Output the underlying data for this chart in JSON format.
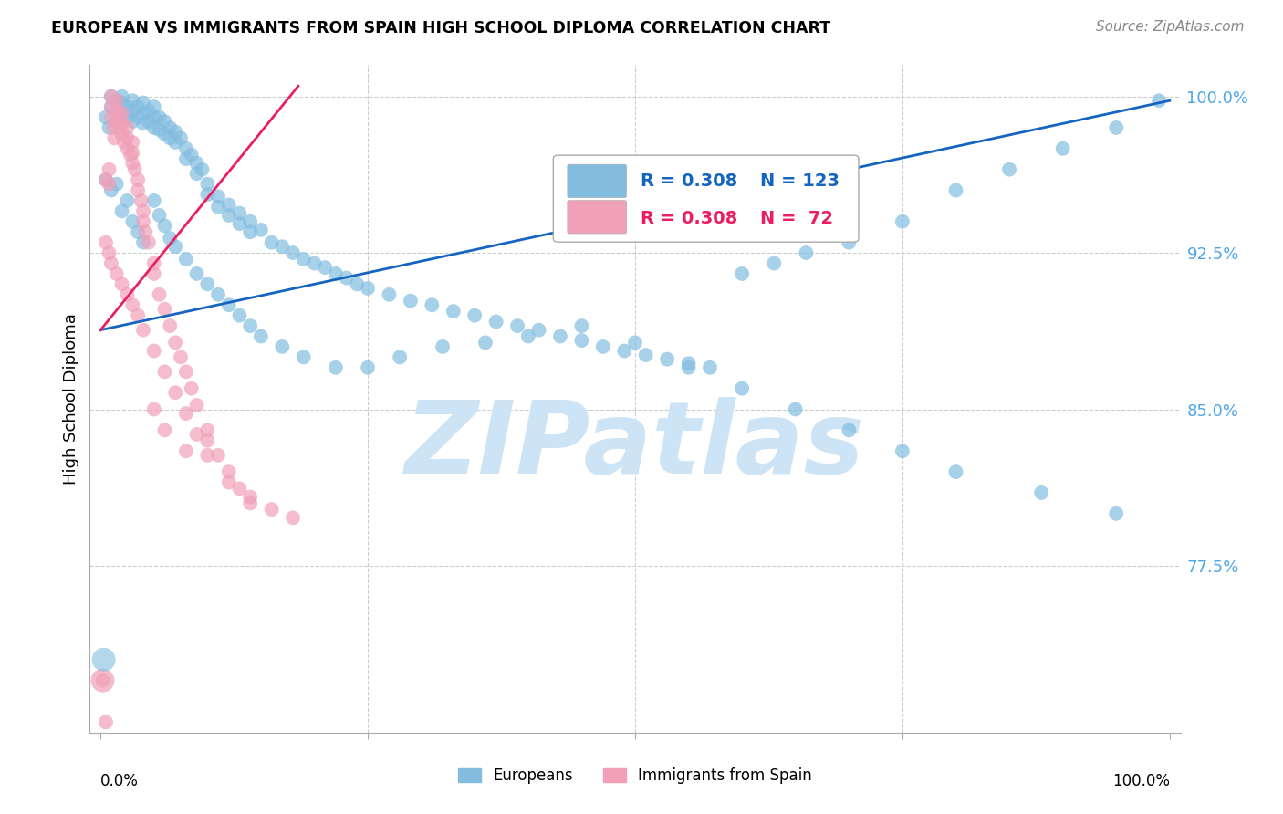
{
  "title": "EUROPEAN VS IMMIGRANTS FROM SPAIN HIGH SCHOOL DIPLOMA CORRELATION CHART",
  "source": "Source: ZipAtlas.com",
  "ylabel": "High School Diploma",
  "yticks": [
    0.775,
    0.85,
    0.925,
    1.0
  ],
  "ytick_labels": [
    "77.5%",
    "85.0%",
    "92.5%",
    "100.0%"
  ],
  "xlim": [
    -0.01,
    1.01
  ],
  "ylim": [
    0.695,
    1.015
  ],
  "blue_label": "Europeans",
  "pink_label": "Immigrants from Spain",
  "blue_color": "#82bde0",
  "pink_color": "#f0a0b8",
  "blue_line_color": "#1565C0",
  "pink_line_color": "#E91E63",
  "legend_blue_R": "R = 0.308",
  "legend_blue_N": "N = 123",
  "legend_pink_R": "R = 0.308",
  "legend_pink_N": "N =  72",
  "watermark": "ZIPatlas",
  "watermark_color": "#cce4f5",
  "blue_line": {
    "x0": 0.0,
    "y0": 0.888,
    "x1": 1.0,
    "y1": 0.998
  },
  "pink_line": {
    "x0": 0.0,
    "y0": 0.888,
    "x1": 0.185,
    "y1": 1.005
  },
  "blue_scatter_x": [
    0.005,
    0.008,
    0.01,
    0.01,
    0.015,
    0.018,
    0.02,
    0.02,
    0.025,
    0.025,
    0.03,
    0.03,
    0.03,
    0.035,
    0.035,
    0.04,
    0.04,
    0.04,
    0.045,
    0.045,
    0.05,
    0.05,
    0.05,
    0.055,
    0.055,
    0.06,
    0.06,
    0.065,
    0.065,
    0.07,
    0.07,
    0.075,
    0.08,
    0.08,
    0.085,
    0.09,
    0.09,
    0.095,
    0.1,
    0.1,
    0.11,
    0.11,
    0.12,
    0.12,
    0.13,
    0.13,
    0.14,
    0.14,
    0.15,
    0.16,
    0.17,
    0.18,
    0.19,
    0.2,
    0.21,
    0.22,
    0.23,
    0.24,
    0.25,
    0.27,
    0.29,
    0.31,
    0.33,
    0.35,
    0.37,
    0.39,
    0.41,
    0.43,
    0.45,
    0.47,
    0.49,
    0.51,
    0.53,
    0.55,
    0.57,
    0.6,
    0.63,
    0.66,
    0.7,
    0.75,
    0.8,
    0.85,
    0.9,
    0.95,
    0.99,
    0.005,
    0.01,
    0.015,
    0.02,
    0.025,
    0.03,
    0.035,
    0.04,
    0.05,
    0.055,
    0.06,
    0.065,
    0.07,
    0.08,
    0.09,
    0.1,
    0.11,
    0.12,
    0.13,
    0.14,
    0.15,
    0.17,
    0.19,
    0.22,
    0.25,
    0.28,
    0.32,
    0.36,
    0.4,
    0.45,
    0.5,
    0.55,
    0.6,
    0.65,
    0.7,
    0.75,
    0.8,
    0.88,
    0.95
  ],
  "blue_scatter_y": [
    0.99,
    0.985,
    1.0,
    0.995,
    0.998,
    0.992,
    1.0,
    0.997,
    0.995,
    0.99,
    0.998,
    0.993,
    0.988,
    0.995,
    0.99,
    0.997,
    0.992,
    0.987,
    0.993,
    0.988,
    0.995,
    0.99,
    0.985,
    0.99,
    0.984,
    0.988,
    0.982,
    0.985,
    0.98,
    0.983,
    0.978,
    0.98,
    0.975,
    0.97,
    0.972,
    0.968,
    0.963,
    0.965,
    0.958,
    0.953,
    0.952,
    0.947,
    0.948,
    0.943,
    0.944,
    0.939,
    0.94,
    0.935,
    0.936,
    0.93,
    0.928,
    0.925,
    0.922,
    0.92,
    0.918,
    0.915,
    0.913,
    0.91,
    0.908,
    0.905,
    0.902,
    0.9,
    0.897,
    0.895,
    0.892,
    0.89,
    0.888,
    0.885,
    0.883,
    0.88,
    0.878,
    0.876,
    0.874,
    0.872,
    0.87,
    0.915,
    0.92,
    0.925,
    0.93,
    0.94,
    0.955,
    0.965,
    0.975,
    0.985,
    0.998,
    0.96,
    0.955,
    0.958,
    0.945,
    0.95,
    0.94,
    0.935,
    0.93,
    0.95,
    0.943,
    0.938,
    0.932,
    0.928,
    0.922,
    0.915,
    0.91,
    0.905,
    0.9,
    0.895,
    0.89,
    0.885,
    0.88,
    0.875,
    0.87,
    0.87,
    0.875,
    0.88,
    0.882,
    0.885,
    0.89,
    0.882,
    0.87,
    0.86,
    0.85,
    0.84,
    0.83,
    0.82,
    0.81,
    0.8
  ],
  "pink_scatter_x": [
    0.002,
    0.005,
    0.005,
    0.008,
    0.008,
    0.01,
    0.01,
    0.01,
    0.012,
    0.013,
    0.015,
    0.015,
    0.015,
    0.018,
    0.018,
    0.02,
    0.02,
    0.02,
    0.022,
    0.025,
    0.025,
    0.025,
    0.028,
    0.03,
    0.03,
    0.03,
    0.032,
    0.035,
    0.035,
    0.038,
    0.04,
    0.04,
    0.042,
    0.045,
    0.05,
    0.05,
    0.055,
    0.06,
    0.065,
    0.07,
    0.075,
    0.08,
    0.085,
    0.09,
    0.1,
    0.1,
    0.11,
    0.12,
    0.13,
    0.14,
    0.005,
    0.008,
    0.01,
    0.015,
    0.02,
    0.025,
    0.03,
    0.035,
    0.04,
    0.05,
    0.06,
    0.07,
    0.08,
    0.09,
    0.1,
    0.12,
    0.14,
    0.16,
    0.18,
    0.05,
    0.06,
    0.08
  ],
  "pink_scatter_y": [
    0.72,
    0.7,
    0.96,
    0.965,
    0.958,
    1.0,
    0.995,
    0.99,
    0.985,
    0.98,
    0.998,
    0.993,
    0.988,
    0.99,
    0.985,
    0.992,
    0.987,
    0.982,
    0.978,
    0.985,
    0.98,
    0.975,
    0.972,
    0.978,
    0.973,
    0.968,
    0.965,
    0.96,
    0.955,
    0.95,
    0.945,
    0.94,
    0.935,
    0.93,
    0.92,
    0.915,
    0.905,
    0.898,
    0.89,
    0.882,
    0.875,
    0.868,
    0.86,
    0.852,
    0.84,
    0.835,
    0.828,
    0.82,
    0.812,
    0.805,
    0.93,
    0.925,
    0.92,
    0.915,
    0.91,
    0.905,
    0.9,
    0.895,
    0.888,
    0.878,
    0.868,
    0.858,
    0.848,
    0.838,
    0.828,
    0.815,
    0.808,
    0.802,
    0.798,
    0.85,
    0.84,
    0.83
  ]
}
